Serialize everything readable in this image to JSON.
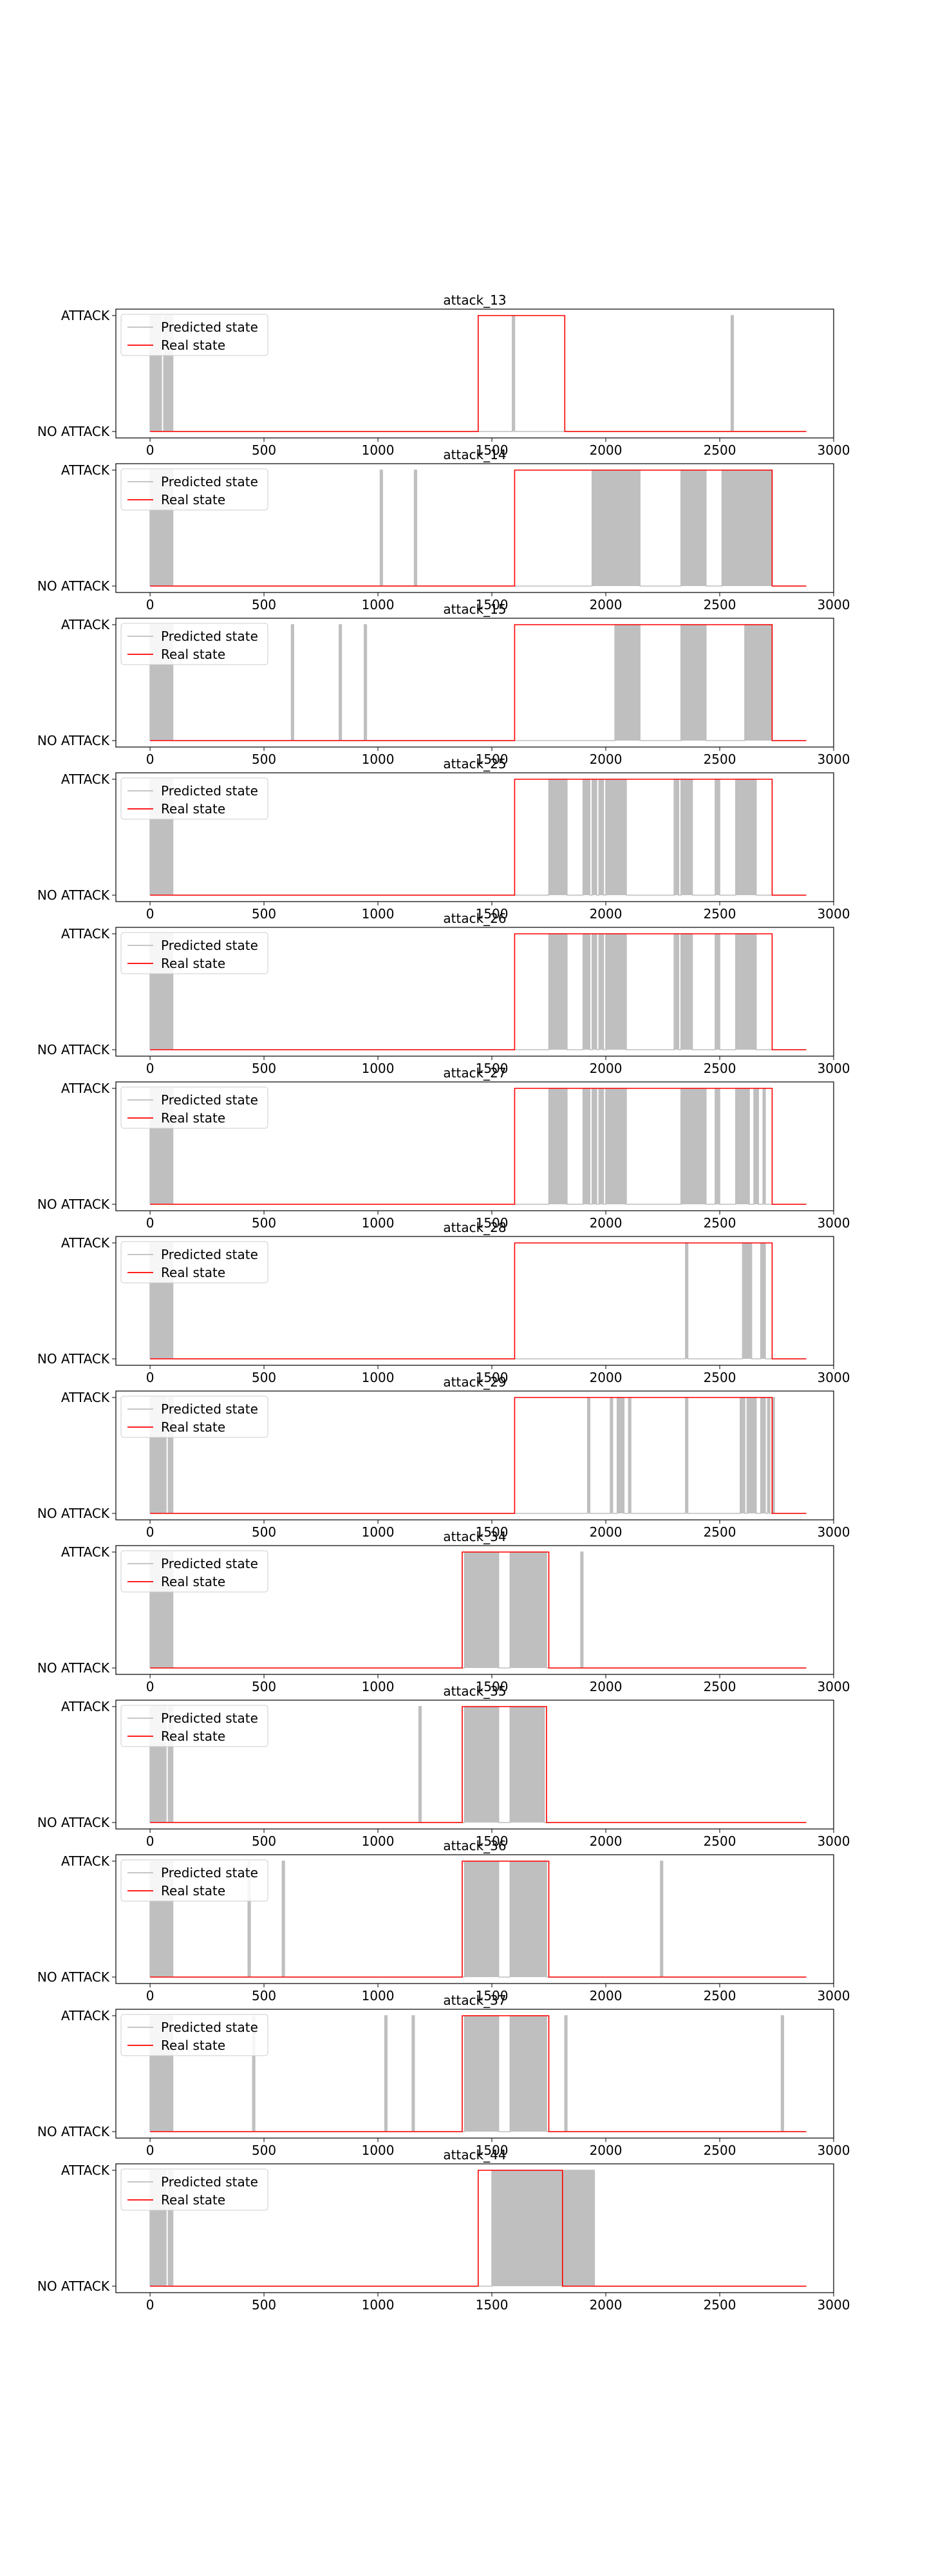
{
  "chart_data": [
    {
      "type": "line",
      "title": "attack_13",
      "xlim": [
        -150,
        3000
      ],
      "x_ticks": [
        0,
        500,
        1000,
        1500,
        2000,
        2500,
        3000
      ],
      "y_ticks": [
        "NO ATTACK",
        "ATTACK"
      ],
      "legend": {
        "position": "top-left",
        "entries": [
          "Predicted state",
          "Real state"
        ]
      },
      "series": [
        {
          "name": "Predicted state",
          "color": "#bfbfbf",
          "attack_intervals": [
            [
              0,
              50
            ],
            [
              60,
              100
            ],
            [
              1590,
              1600
            ],
            [
              2550,
              2560
            ]
          ]
        },
        {
          "name": "Real state",
          "color": "#ff0000",
          "attack_intervals": [
            [
              1440,
              1820
            ]
          ]
        }
      ],
      "x_end": 2880
    },
    {
      "type": "line",
      "title": "attack_14",
      "xlim": [
        -150,
        3000
      ],
      "x_ticks": [
        0,
        500,
        1000,
        1500,
        2000,
        2500,
        3000
      ],
      "y_ticks": [
        "NO ATTACK",
        "ATTACK"
      ],
      "legend": {
        "position": "top-left",
        "entries": [
          "Predicted state",
          "Real state"
        ]
      },
      "series": [
        {
          "name": "Predicted state",
          "color": "#bfbfbf",
          "attack_intervals": [
            [
              0,
              100
            ],
            [
              1010,
              1020
            ],
            [
              1160,
              1170
            ],
            [
              1940,
              2150
            ],
            [
              2330,
              2440
            ],
            [
              2510,
              2730
            ]
          ]
        },
        {
          "name": "Real state",
          "color": "#ff0000",
          "attack_intervals": [
            [
              1600,
              2730
            ]
          ]
        }
      ],
      "x_end": 2880
    },
    {
      "type": "line",
      "title": "attack_15",
      "xlim": [
        -150,
        3000
      ],
      "x_ticks": [
        0,
        500,
        1000,
        1500,
        2000,
        2500,
        3000
      ],
      "y_ticks": [
        "NO ATTACK",
        "ATTACK"
      ],
      "legend": {
        "position": "top-left",
        "entries": [
          "Predicted state",
          "Real state"
        ]
      },
      "series": [
        {
          "name": "Predicted state",
          "color": "#bfbfbf",
          "attack_intervals": [
            [
              0,
              100
            ],
            [
              620,
              630
            ],
            [
              830,
              840
            ],
            [
              940,
              950
            ],
            [
              2040,
              2150
            ],
            [
              2330,
              2440
            ],
            [
              2610,
              2730
            ]
          ]
        },
        {
          "name": "Real state",
          "color": "#ff0000",
          "attack_intervals": [
            [
              1600,
              2730
            ]
          ]
        }
      ],
      "x_end": 2880
    },
    {
      "type": "line",
      "title": "attack_25",
      "xlim": [
        -150,
        3000
      ],
      "x_ticks": [
        0,
        500,
        1000,
        1500,
        2000,
        2500,
        3000
      ],
      "y_ticks": [
        "NO ATTACK",
        "ATTACK"
      ],
      "legend": {
        "position": "top-left",
        "entries": [
          "Predicted state",
          "Real state"
        ]
      },
      "series": [
        {
          "name": "Predicted state",
          "color": "#bfbfbf",
          "attack_intervals": [
            [
              0,
              100
            ],
            [
              1750,
              1830
            ],
            [
              1900,
              1930
            ],
            [
              1940,
              1960
            ],
            [
              1970,
              1990
            ],
            [
              2000,
              2090
            ],
            [
              2300,
              2320
            ],
            [
              2330,
              2380
            ],
            [
              2480,
              2500
            ],
            [
              2570,
              2660
            ]
          ]
        },
        {
          "name": "Real state",
          "color": "#ff0000",
          "attack_intervals": [
            [
              1600,
              2730
            ]
          ]
        }
      ],
      "x_end": 2880
    },
    {
      "type": "line",
      "title": "attack_26",
      "xlim": [
        -150,
        3000
      ],
      "x_ticks": [
        0,
        500,
        1000,
        1500,
        2000,
        2500,
        3000
      ],
      "y_ticks": [
        "NO ATTACK",
        "ATTACK"
      ],
      "legend": {
        "position": "top-left",
        "entries": [
          "Predicted state",
          "Real state"
        ]
      },
      "series": [
        {
          "name": "Predicted state",
          "color": "#bfbfbf",
          "attack_intervals": [
            [
              0,
              100
            ],
            [
              1750,
              1830
            ],
            [
              1900,
              1930
            ],
            [
              1940,
              1960
            ],
            [
              1970,
              1990
            ],
            [
              2000,
              2090
            ],
            [
              2300,
              2320
            ],
            [
              2330,
              2380
            ],
            [
              2480,
              2500
            ],
            [
              2570,
              2660
            ]
          ]
        },
        {
          "name": "Real state",
          "color": "#ff0000",
          "attack_intervals": [
            [
              1600,
              2730
            ]
          ]
        }
      ],
      "x_end": 2880
    },
    {
      "type": "line",
      "title": "attack_27",
      "xlim": [
        -150,
        3000
      ],
      "x_ticks": [
        0,
        500,
        1000,
        1500,
        2000,
        2500,
        3000
      ],
      "y_ticks": [
        "NO ATTACK",
        "ATTACK"
      ],
      "legend": {
        "position": "top-left",
        "entries": [
          "Predicted state",
          "Real state"
        ]
      },
      "series": [
        {
          "name": "Predicted state",
          "color": "#bfbfbf",
          "attack_intervals": [
            [
              0,
              100
            ],
            [
              1750,
              1830
            ],
            [
              1900,
              1930
            ],
            [
              1940,
              1960
            ],
            [
              1970,
              1990
            ],
            [
              2000,
              2090
            ],
            [
              2330,
              2440
            ],
            [
              2480,
              2500
            ],
            [
              2570,
              2630
            ],
            [
              2650,
              2670
            ],
            [
              2690,
              2700
            ]
          ]
        },
        {
          "name": "Real state",
          "color": "#ff0000",
          "attack_intervals": [
            [
              1600,
              2730
            ]
          ]
        }
      ],
      "x_end": 2880
    },
    {
      "type": "line",
      "title": "attack_28",
      "xlim": [
        -150,
        3000
      ],
      "x_ticks": [
        0,
        500,
        1000,
        1500,
        2000,
        2500,
        3000
      ],
      "y_ticks": [
        "NO ATTACK",
        "ATTACK"
      ],
      "legend": {
        "position": "top-left",
        "entries": [
          "Predicted state",
          "Real state"
        ]
      },
      "series": [
        {
          "name": "Predicted state",
          "color": "#bfbfbf",
          "attack_intervals": [
            [
              0,
              100
            ],
            [
              2350,
              2360
            ],
            [
              2600,
              2640
            ],
            [
              2680,
              2700
            ]
          ]
        },
        {
          "name": "Real state",
          "color": "#ff0000",
          "attack_intervals": [
            [
              1600,
              2730
            ]
          ]
        }
      ],
      "x_end": 2880
    },
    {
      "type": "line",
      "title": "attack_29",
      "xlim": [
        -150,
        3000
      ],
      "x_ticks": [
        0,
        500,
        1000,
        1500,
        2000,
        2500,
        3000
      ],
      "y_ticks": [
        "NO ATTACK",
        "ATTACK"
      ],
      "legend": {
        "position": "top-left",
        "entries": [
          "Predicted state",
          "Real state"
        ]
      },
      "series": [
        {
          "name": "Predicted state",
          "color": "#bfbfbf",
          "attack_intervals": [
            [
              0,
              70
            ],
            [
              80,
              100
            ],
            [
              1920,
              1930
            ],
            [
              2020,
              2030
            ],
            [
              2050,
              2080
            ],
            [
              2100,
              2110
            ],
            [
              2350,
              2360
            ],
            [
              2590,
              2610
            ],
            [
              2620,
              2660
            ],
            [
              2680,
              2700
            ],
            [
              2710,
              2720
            ],
            [
              2730,
              2740
            ]
          ]
        },
        {
          "name": "Real state",
          "color": "#ff0000",
          "attack_intervals": [
            [
              1600,
              2730
            ]
          ]
        }
      ],
      "x_end": 2880
    },
    {
      "type": "line",
      "title": "attack_34",
      "xlim": [
        -150,
        3000
      ],
      "x_ticks": [
        0,
        500,
        1000,
        1500,
        2000,
        2500,
        3000
      ],
      "y_ticks": [
        "NO ATTACK",
        "ATTACK"
      ],
      "legend": {
        "position": "top-left",
        "entries": [
          "Predicted state",
          "Real state"
        ]
      },
      "series": [
        {
          "name": "Predicted state",
          "color": "#bfbfbf",
          "attack_intervals": [
            [
              0,
              100
            ],
            [
              1380,
              1530
            ],
            [
              1580,
              1740
            ],
            [
              1890,
              1900
            ]
          ]
        },
        {
          "name": "Real state",
          "color": "#ff0000",
          "attack_intervals": [
            [
              1370,
              1750
            ]
          ]
        }
      ],
      "x_end": 2880
    },
    {
      "type": "line",
      "title": "attack_35",
      "xlim": [
        -150,
        3000
      ],
      "x_ticks": [
        0,
        500,
        1000,
        1500,
        2000,
        2500,
        3000
      ],
      "y_ticks": [
        "NO ATTACK",
        "ATTACK"
      ],
      "legend": {
        "position": "top-left",
        "entries": [
          "Predicted state",
          "Real state"
        ]
      },
      "series": [
        {
          "name": "Predicted state",
          "color": "#bfbfbf",
          "attack_intervals": [
            [
              0,
              70
            ],
            [
              80,
              100
            ],
            [
              1180,
              1190
            ],
            [
              1380,
              1530
            ],
            [
              1580,
              1730
            ]
          ]
        },
        {
          "name": "Real state",
          "color": "#ff0000",
          "attack_intervals": [
            [
              1370,
              1740
            ]
          ]
        }
      ],
      "x_end": 2880
    },
    {
      "type": "line",
      "title": "attack_36",
      "xlim": [
        -150,
        3000
      ],
      "x_ticks": [
        0,
        500,
        1000,
        1500,
        2000,
        2500,
        3000
      ],
      "y_ticks": [
        "NO ATTACK",
        "ATTACK"
      ],
      "legend": {
        "position": "top-left",
        "entries": [
          "Predicted state",
          "Real state"
        ]
      },
      "series": [
        {
          "name": "Predicted state",
          "color": "#bfbfbf",
          "attack_intervals": [
            [
              0,
              100
            ],
            [
              430,
              440
            ],
            [
              580,
              590
            ],
            [
              1380,
              1530
            ],
            [
              1580,
              1740
            ],
            [
              2240,
              2250
            ]
          ]
        },
        {
          "name": "Real state",
          "color": "#ff0000",
          "attack_intervals": [
            [
              1370,
              1750
            ]
          ]
        }
      ],
      "x_end": 2880
    },
    {
      "type": "line",
      "title": "attack_37",
      "xlim": [
        -150,
        3000
      ],
      "x_ticks": [
        0,
        500,
        1000,
        1500,
        2000,
        2500,
        3000
      ],
      "y_ticks": [
        "NO ATTACK",
        "ATTACK"
      ],
      "legend": {
        "position": "top-left",
        "entries": [
          "Predicted state",
          "Real state"
        ]
      },
      "series": [
        {
          "name": "Predicted state",
          "color": "#bfbfbf",
          "attack_intervals": [
            [
              0,
              100
            ],
            [
              450,
              460
            ],
            [
              1030,
              1040
            ],
            [
              1150,
              1160
            ],
            [
              1380,
              1530
            ],
            [
              1580,
              1740
            ],
            [
              1820,
              1830
            ],
            [
              2770,
              2780
            ]
          ]
        },
        {
          "name": "Real state",
          "color": "#ff0000",
          "attack_intervals": [
            [
              1370,
              1750
            ]
          ]
        }
      ],
      "x_end": 2880
    },
    {
      "type": "line",
      "title": "attack_44",
      "xlim": [
        -150,
        3000
      ],
      "x_ticks": [
        0,
        500,
        1000,
        1500,
        2000,
        2500,
        3000
      ],
      "y_ticks": [
        "NO ATTACK",
        "ATTACK"
      ],
      "legend": {
        "position": "top-left",
        "entries": [
          "Predicted state",
          "Real state"
        ]
      },
      "series": [
        {
          "name": "Predicted state",
          "color": "#bfbfbf",
          "attack_intervals": [
            [
              0,
              70
            ],
            [
              80,
              100
            ],
            [
              1500,
              1950
            ]
          ]
        },
        {
          "name": "Real state",
          "color": "#ff0000",
          "attack_intervals": [
            [
              1440,
              1810
            ]
          ]
        }
      ],
      "x_end": 2880
    }
  ]
}
